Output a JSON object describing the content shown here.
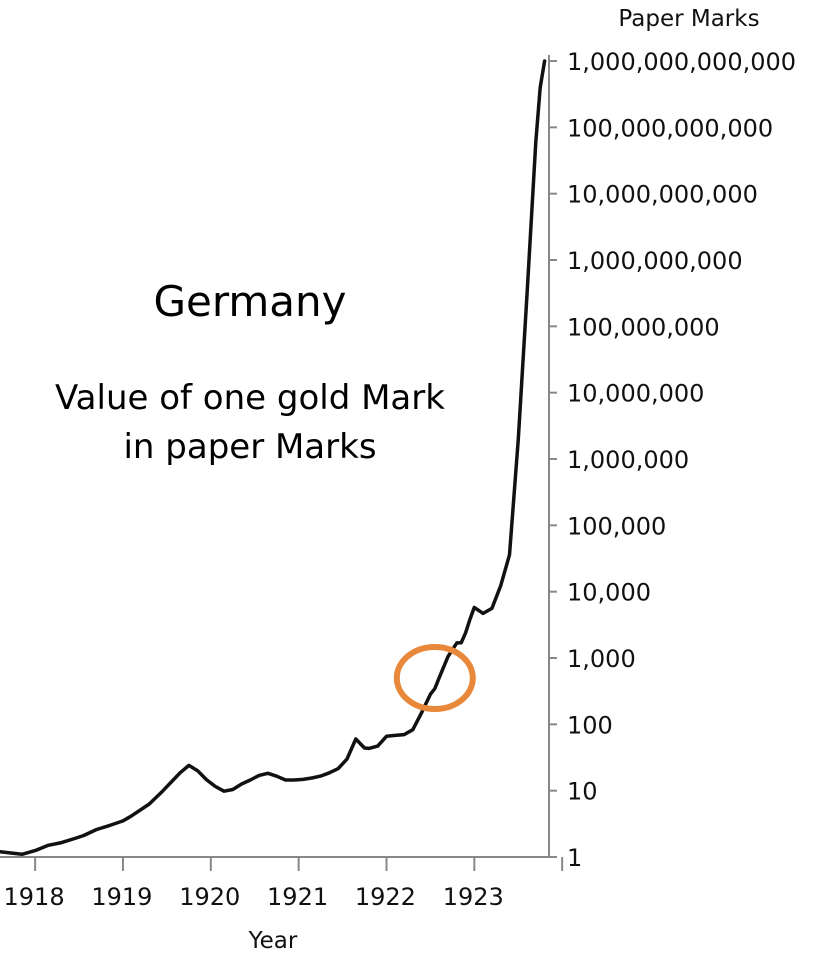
{
  "chart_data": {
    "type": "line",
    "title": "Germany",
    "subtitle_lines": [
      "Value of one gold Mark",
      "in paper Marks"
    ],
    "xlabel": "Year",
    "ylabel": "Paper Marks",
    "y_scale": "log",
    "ylim": [
      1,
      1000000000000
    ],
    "xlim": [
      1917.6,
      1923.85
    ],
    "x_ticks": [
      "1918",
      "1919",
      "1920",
      "1921",
      "1922",
      "1923"
    ],
    "y_ticks": [
      "1",
      "10",
      "100",
      "1,000",
      "10,000",
      "100,000",
      "1,000,000",
      "10,000,000",
      "100,000,000",
      "1,000,000,000",
      "10,000,000,000",
      "100,000,000,000",
      "1,000,000,000,000"
    ],
    "grid": false,
    "series": [
      {
        "x": [
          1917.6,
          1917.85,
          1918.0,
          1918.15,
          1918.3,
          1918.45,
          1918.55,
          1918.7,
          1918.85,
          1919.0,
          1919.1,
          1919.3,
          1919.45,
          1919.55,
          1919.65,
          1919.75,
          1919.85,
          1919.95,
          1920.05,
          1920.15,
          1920.25,
          1920.35,
          1920.45,
          1920.55,
          1920.65,
          1920.75,
          1920.85,
          1920.95,
          1921.05,
          1921.15,
          1921.25,
          1921.35,
          1921.45,
          1921.55,
          1921.65,
          1921.75,
          1921.8,
          1921.9,
          1922.0,
          1922.1,
          1922.2,
          1922.3,
          1922.4,
          1922.5,
          1922.55,
          1922.6,
          1922.7,
          1922.8,
          1922.85,
          1922.9,
          1922.95,
          1923.0,
          1923.1,
          1923.2,
          1923.3,
          1923.4,
          1923.5,
          1923.6,
          1923.7,
          1923.75,
          1923.8
        ],
        "y": [
          1.2,
          1.1,
          1.25,
          1.5,
          1.65,
          1.9,
          2.1,
          2.6,
          3.0,
          3.5,
          4.2,
          6.3,
          9.8,
          13.5,
          18.6,
          24.0,
          20.0,
          14.7,
          11.6,
          9.8,
          10.4,
          12.6,
          14.5,
          17.0,
          18.3,
          16.5,
          14.5,
          14.5,
          14.8,
          15.5,
          16.6,
          18.6,
          21.5,
          30.0,
          60.0,
          44.0,
          43.4,
          47.0,
          66.0,
          68.0,
          70.0,
          83.0,
          150.0,
          285.0,
          345.0,
          505.0,
          1050.0,
          1690.0,
          1695.0,
          2400.0,
          3800.0,
          5800.0,
          4700.0,
          5600.0,
          12300.0,
          36000.0,
          2000000.0,
          300000000.0,
          60000000000.0,
          400000000000.0,
          1000000000000.0
        ]
      }
    ],
    "annotation": {
      "shape": "ellipse",
      "center": {
        "x": 1922.55,
        "y": 500
      },
      "color": "#E8883A"
    },
    "colors": {
      "line": "#111111",
      "axis": "#888888",
      "highlight": "#E8883A"
    }
  }
}
